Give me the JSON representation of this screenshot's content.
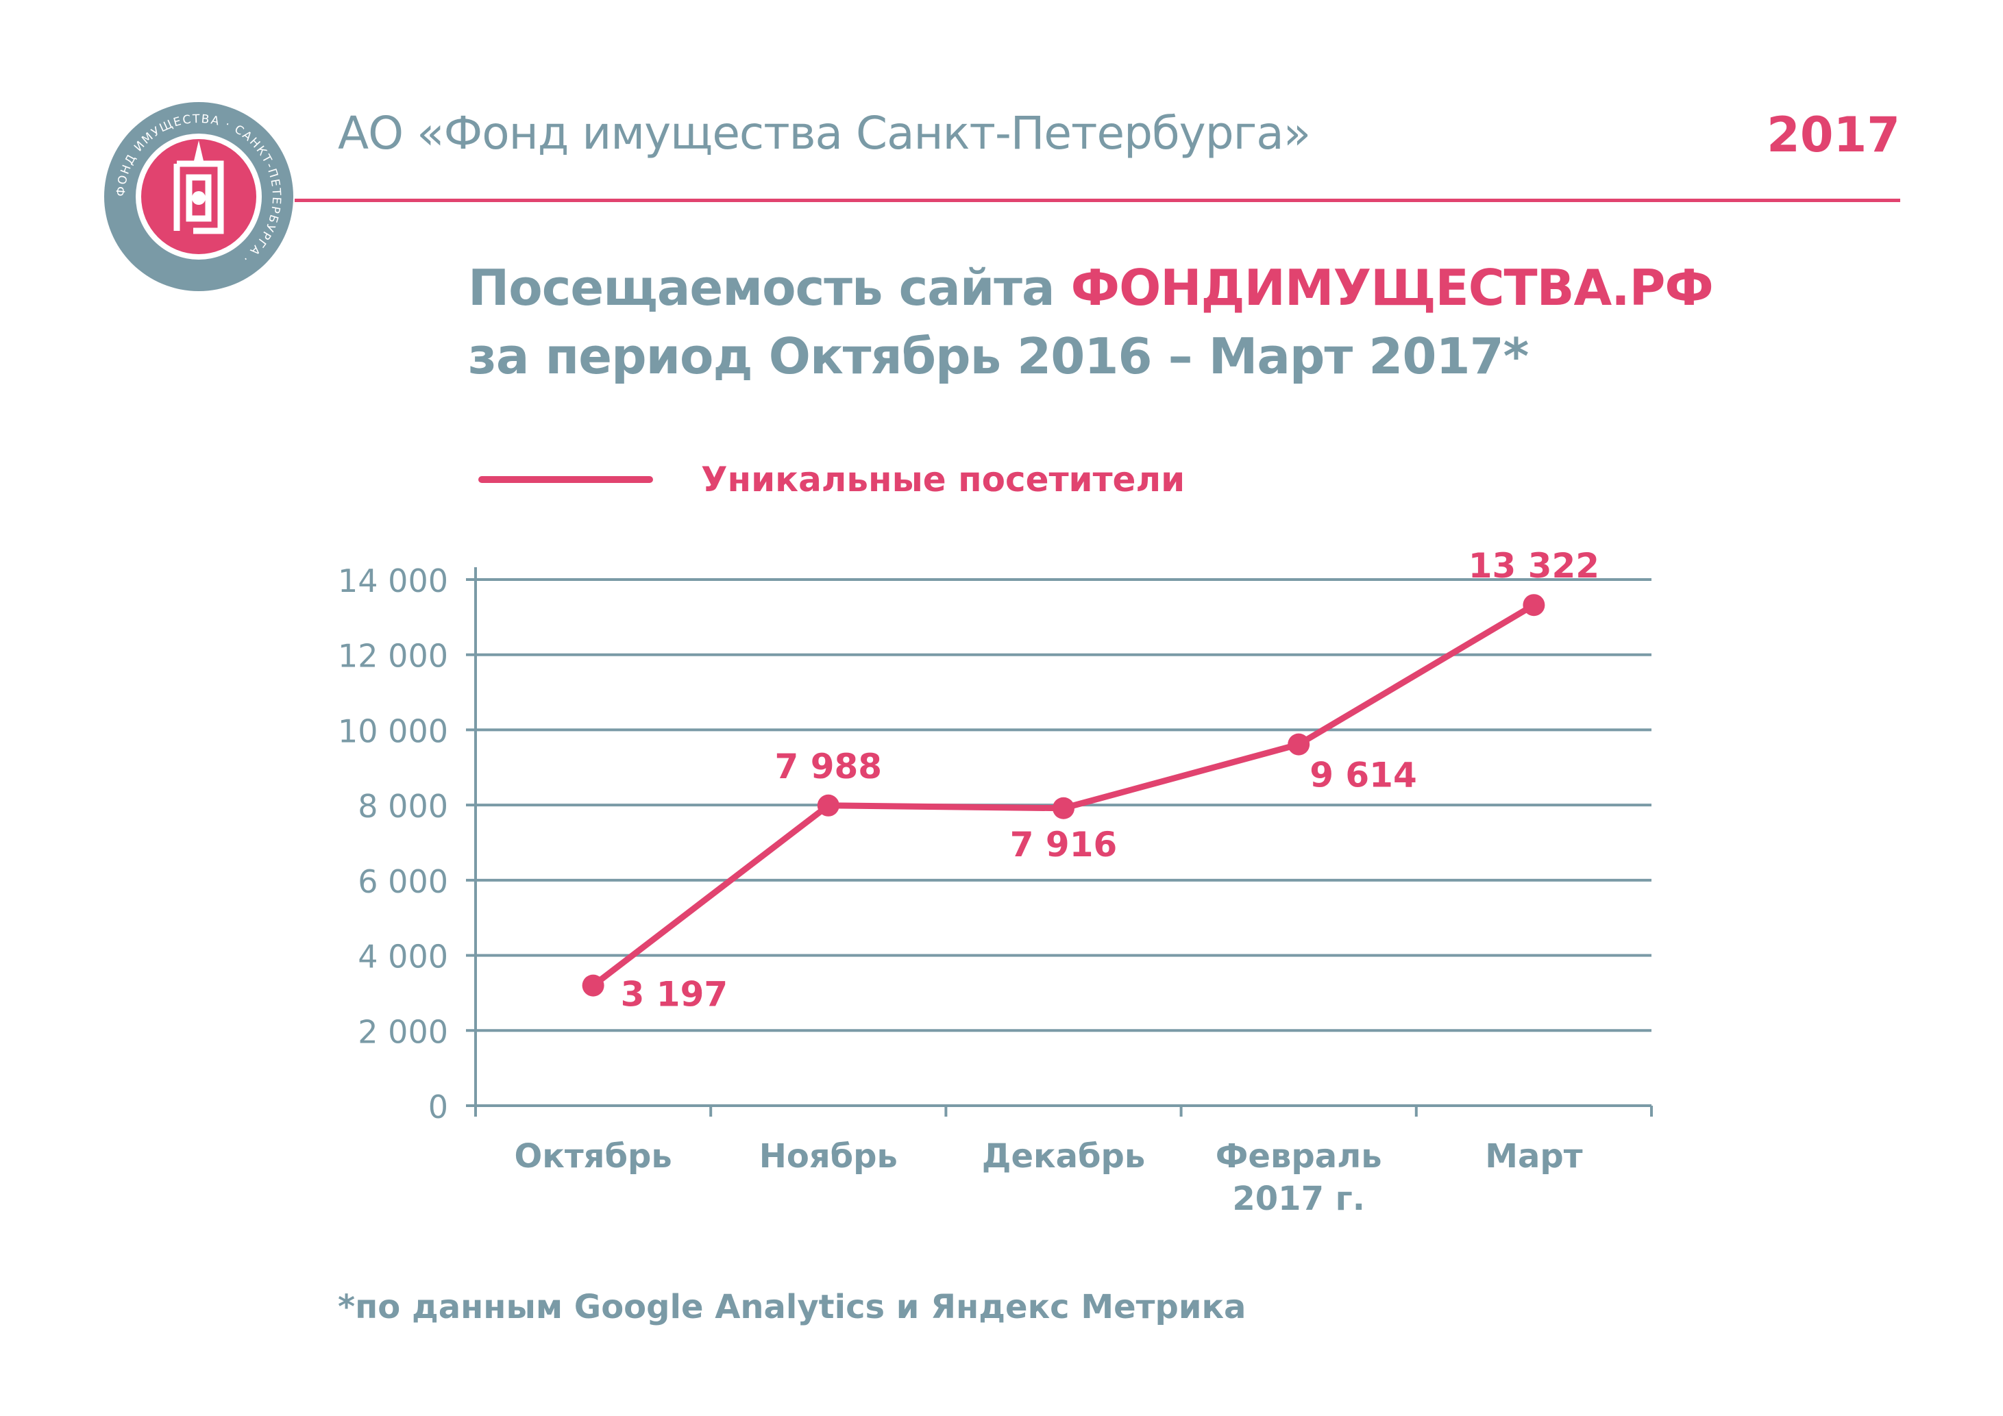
{
  "header": {
    "org_name": "АО «Фонд имущества Санкт-Петербурга»",
    "year": "2017",
    "logo_ring_text": "ФОНД ИМУЩЕСТВА · САНКТ-ПЕТЕРБУРГА ·"
  },
  "title": {
    "line1_prefix": "Посещаемость сайта ",
    "line1_accent": "ФОНДИМУЩЕСТВА.РФ",
    "line2": "за период Октябрь 2016 – Март 2017*"
  },
  "legend": {
    "label": "Уникальные посетители"
  },
  "chart_data": {
    "type": "line",
    "categories": [
      "Октябрь",
      "Ноябрь",
      "Декабрь",
      "Февраль 2017 г.",
      "Март"
    ],
    "category_lines": [
      [
        "Октябрь"
      ],
      [
        "Ноябрь"
      ],
      [
        "Декабрь"
      ],
      [
        "Февраль",
        "2017 г."
      ],
      [
        "Март"
      ]
    ],
    "series": [
      {
        "name": "Уникальные посетители",
        "values": [
          3197,
          7988,
          7916,
          9614,
          13322
        ],
        "labels": [
          "3 197",
          "7 988",
          "7 916",
          "9 614",
          "13 322"
        ],
        "label_positions": [
          "right",
          "above",
          "below",
          "below-right",
          "above"
        ]
      }
    ],
    "ylim": [
      0,
      14000
    ],
    "yticks": [
      0,
      2000,
      4000,
      6000,
      8000,
      10000,
      12000,
      14000
    ],
    "ytick_labels": [
      "0",
      "2 000",
      "4 000",
      "6 000",
      "8 000",
      "10 000",
      "12 000",
      "14 000"
    ],
    "grid": true,
    "legend_position": "top-left",
    "xlabel": "",
    "ylabel": ""
  },
  "footnote": "*по данным Google Analytics и Яндекс Метрика",
  "colors": {
    "accent": "#e1436f",
    "text": "#7a9aa6",
    "grid": "#7a9aa6",
    "logo_ring": "#7a9aa6"
  },
  "icons": {
    "logo": "fond-imushchestva-emblem"
  }
}
